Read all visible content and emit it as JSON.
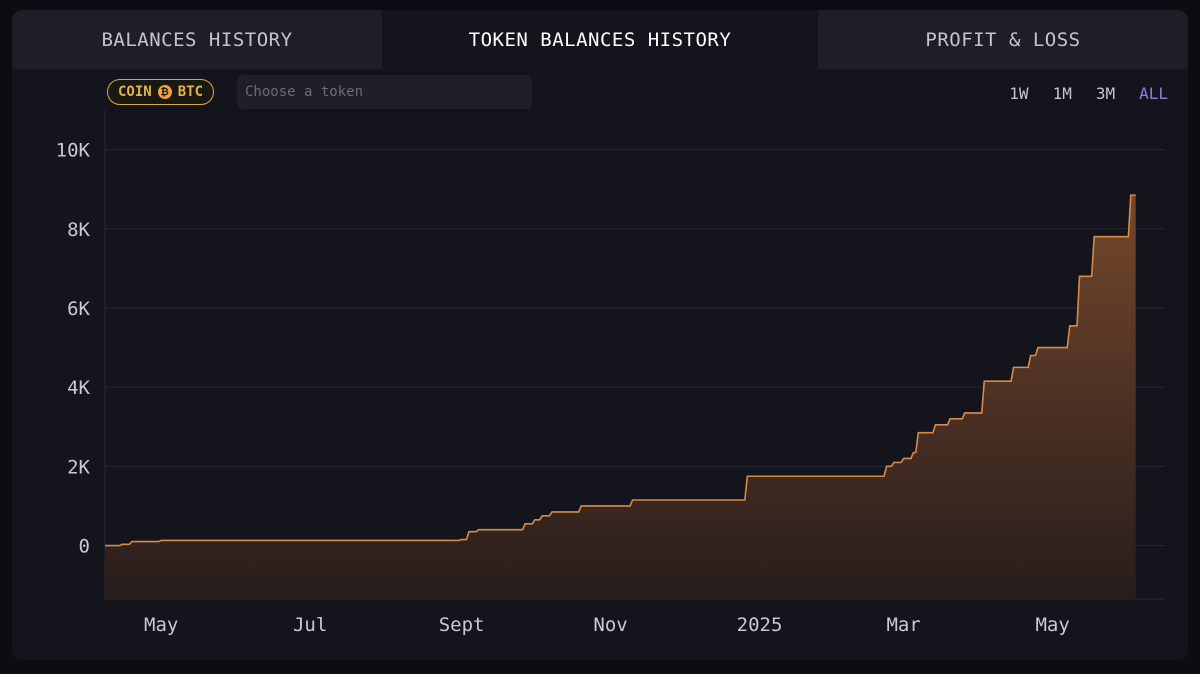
{
  "tabs": [
    {
      "label": "BALANCES HISTORY",
      "active": false
    },
    {
      "label": "TOKEN BALANCES HISTORY",
      "active": true
    },
    {
      "label": "PROFIT & LOSS",
      "active": false
    }
  ],
  "filter": {
    "coin_label": "COIN",
    "coin_symbol": "BTC",
    "coin_icon": "bitcoin-icon",
    "token_placeholder": "Choose a token",
    "token_value": ""
  },
  "ranges": [
    {
      "label": "1W",
      "active": false
    },
    {
      "label": "1M",
      "active": false
    },
    {
      "label": "3M",
      "active": false
    },
    {
      "label": "ALL",
      "active": true
    }
  ],
  "colors": {
    "accent": "#8b7ee0",
    "line": "#d98a4a",
    "coin_badge": "#e3b24a"
  },
  "chart_data": {
    "type": "area",
    "interpolation": "step",
    "ylim": [
      -1350,
      11000
    ],
    "yticks": [
      0,
      2000,
      4000,
      6000,
      8000,
      10000
    ],
    "ytick_labels": [
      "0",
      "2K",
      "4K",
      "6K",
      "8K",
      "10K"
    ],
    "xlim": [
      "2024-04-08",
      "2025-06-16"
    ],
    "xticks": [
      "2024-05-01",
      "2024-07-01",
      "2024-09-01",
      "2024-11-01",
      "2025-01-01",
      "2025-03-01",
      "2025-05-01"
    ],
    "xtick_labels": [
      "May",
      "Jul",
      "Sept",
      "Nov",
      "2025",
      "Mar",
      "May"
    ],
    "grid": true,
    "series": [
      {
        "values": [
          [
            "2024-04-08",
            0
          ],
          [
            "2024-04-15",
            30
          ],
          [
            "2024-04-19",
            100
          ],
          [
            "2024-05-01",
            130
          ],
          [
            "2024-09-01",
            150
          ],
          [
            "2024-09-04",
            350
          ],
          [
            "2024-09-08",
            400
          ],
          [
            "2024-09-27",
            550
          ],
          [
            "2024-10-01",
            650
          ],
          [
            "2024-10-04",
            750
          ],
          [
            "2024-10-08",
            850
          ],
          [
            "2024-10-20",
            1000
          ],
          [
            "2024-11-10",
            1150
          ],
          [
            "2024-12-27",
            1750
          ],
          [
            "2025-02-22",
            2000
          ],
          [
            "2025-02-25",
            2100
          ],
          [
            "2025-03-01",
            2200
          ],
          [
            "2025-03-05",
            2350
          ],
          [
            "2025-03-07",
            2850
          ],
          [
            "2025-03-14",
            3050
          ],
          [
            "2025-03-20",
            3200
          ],
          [
            "2025-03-26",
            3350
          ],
          [
            "2025-04-03",
            4150
          ],
          [
            "2025-04-15",
            4500
          ],
          [
            "2025-04-22",
            4800
          ],
          [
            "2025-04-25",
            5000
          ],
          [
            "2025-05-08",
            5550
          ],
          [
            "2025-05-12",
            6800
          ],
          [
            "2025-05-18",
            7800
          ],
          [
            "2025-06-01",
            7800
          ],
          [
            "2025-06-02",
            8850
          ],
          [
            "2025-06-04",
            8850
          ]
        ]
      }
    ]
  }
}
